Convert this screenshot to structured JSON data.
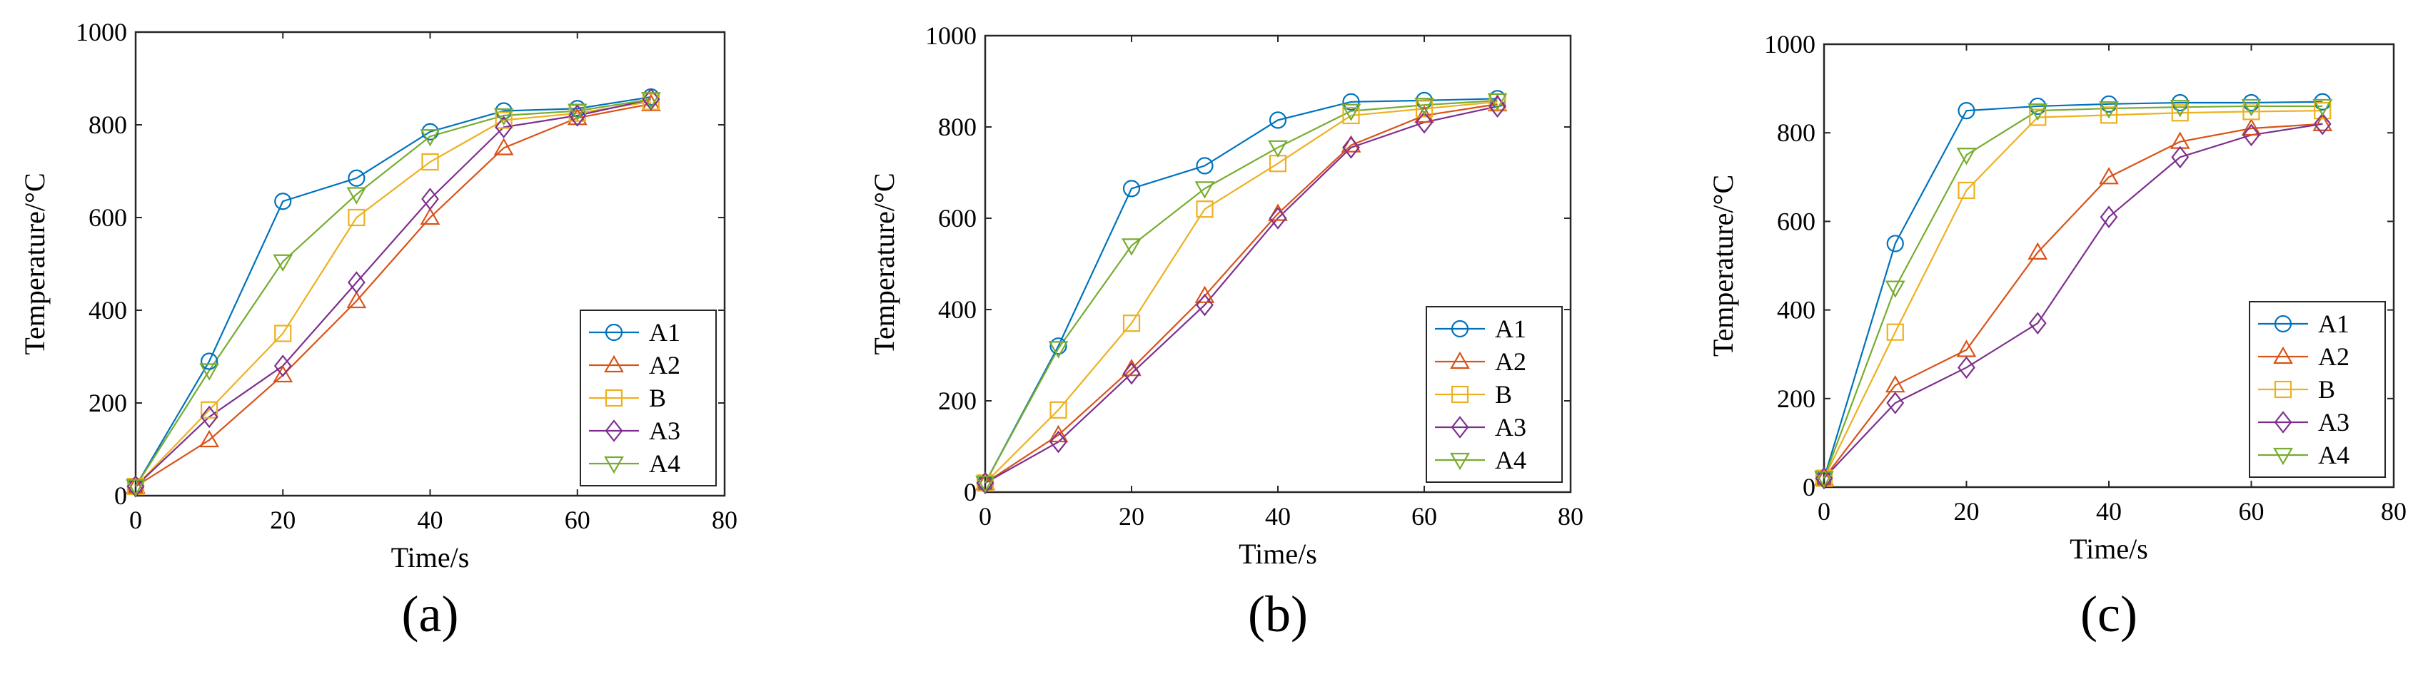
{
  "chart_data": [
    {
      "type": "line",
      "panel_label": "(a)",
      "xlabel": "Time/s",
      "ylabel": "Temperature/°C",
      "xlim": [
        0,
        80
      ],
      "ylim": [
        0,
        1000
      ],
      "xticks": [
        0,
        20,
        40,
        60,
        80
      ],
      "yticks": [
        0,
        200,
        400,
        600,
        800,
        1000
      ],
      "legend_position": "bottom-right",
      "x": [
        0,
        10,
        20,
        30,
        40,
        50,
        60,
        70
      ],
      "series": [
        {
          "name": "A1",
          "marker": "circle",
          "color": "#0072BD",
          "values": [
            20,
            290,
            635,
            685,
            785,
            830,
            835,
            860
          ]
        },
        {
          "name": "A2",
          "marker": "triangle-up",
          "color": "#D95319",
          "values": [
            20,
            120,
            260,
            420,
            600,
            750,
            815,
            845
          ]
        },
        {
          "name": "B",
          "marker": "square",
          "color": "#EDB120",
          "values": [
            20,
            185,
            350,
            600,
            720,
            810,
            825,
            850
          ]
        },
        {
          "name": "A3",
          "marker": "diamond",
          "color": "#7E2F8E",
          "values": [
            20,
            170,
            280,
            460,
            640,
            795,
            820,
            855
          ]
        },
        {
          "name": "A4",
          "marker": "triangle-down",
          "color": "#77AC30",
          "values": [
            20,
            270,
            505,
            650,
            775,
            820,
            830,
            855
          ]
        }
      ]
    },
    {
      "type": "line",
      "panel_label": "(b)",
      "xlabel": "Time/s",
      "ylabel": "Temperature/°C",
      "xlim": [
        0,
        80
      ],
      "ylim": [
        0,
        1000
      ],
      "xticks": [
        0,
        20,
        40,
        60,
        80
      ],
      "yticks": [
        0,
        200,
        400,
        600,
        800,
        1000
      ],
      "legend_position": "bottom-right",
      "x": [
        0,
        10,
        20,
        30,
        40,
        50,
        60,
        70
      ],
      "series": [
        {
          "name": "A1",
          "marker": "circle",
          "color": "#0072BD",
          "values": [
            20,
            320,
            665,
            715,
            815,
            855,
            858,
            862
          ]
        },
        {
          "name": "A2",
          "marker": "triangle-up",
          "color": "#D95319",
          "values": [
            20,
            125,
            270,
            430,
            610,
            760,
            825,
            850
          ]
        },
        {
          "name": "B",
          "marker": "square",
          "color": "#EDB120",
          "values": [
            20,
            180,
            370,
            620,
            720,
            825,
            840,
            855
          ]
        },
        {
          "name": "A3",
          "marker": "diamond",
          "color": "#7E2F8E",
          "values": [
            20,
            110,
            260,
            410,
            600,
            755,
            810,
            845
          ]
        },
        {
          "name": "A4",
          "marker": "triangle-down",
          "color": "#77AC30",
          "values": [
            20,
            315,
            540,
            665,
            755,
            835,
            848,
            858
          ]
        }
      ]
    },
    {
      "type": "line",
      "panel_label": "(c)",
      "xlabel": "Time/s",
      "ylabel": "Temperature/°C",
      "xlim": [
        0,
        80
      ],
      "ylim": [
        0,
        1000
      ],
      "xticks": [
        0,
        20,
        40,
        60,
        80
      ],
      "yticks": [
        0,
        200,
        400,
        600,
        800,
        1000
      ],
      "legend_position": "bottom-right",
      "x": [
        0,
        10,
        20,
        30,
        40,
        50,
        60,
        70
      ],
      "series": [
        {
          "name": "A1",
          "marker": "circle",
          "color": "#0072BD",
          "values": [
            20,
            550,
            850,
            860,
            865,
            868,
            868,
            870
          ]
        },
        {
          "name": "A2",
          "marker": "triangle-up",
          "color": "#D95319",
          "values": [
            20,
            230,
            310,
            530,
            700,
            780,
            810,
            820
          ]
        },
        {
          "name": "B",
          "marker": "square",
          "color": "#EDB120",
          "values": [
            20,
            350,
            670,
            835,
            840,
            845,
            848,
            850
          ]
        },
        {
          "name": "A3",
          "marker": "diamond",
          "color": "#7E2F8E",
          "values": [
            20,
            190,
            270,
            370,
            610,
            745,
            795,
            820
          ]
        },
        {
          "name": "A4",
          "marker": "triangle-down",
          "color": "#77AC30",
          "values": [
            20,
            450,
            750,
            850,
            855,
            858,
            860,
            860
          ]
        }
      ]
    }
  ]
}
